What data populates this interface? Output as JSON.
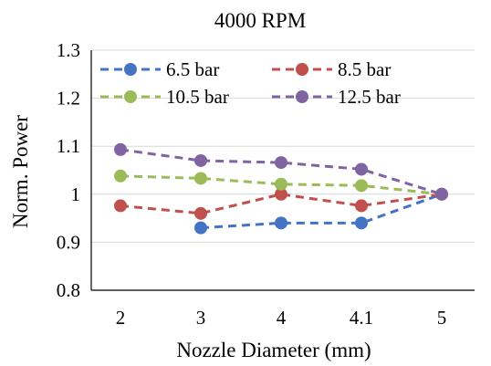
{
  "chart_data": {
    "type": "line",
    "title": "4000 RPM",
    "xlabel": "Nozzle Diameter (mm)",
    "ylabel": "Norm. Power",
    "categories": [
      "2",
      "3",
      "4",
      "4.1",
      "5"
    ],
    "ylim": [
      0.8,
      1.3
    ],
    "yticks": [
      "0.8",
      "0.9",
      "1",
      "1.1",
      "1.2",
      "1.3"
    ],
    "ytick_values": [
      0.8,
      0.9,
      1.0,
      1.1,
      1.2,
      1.3
    ],
    "grid": true,
    "legend_position": "top-left, inside plot, 2 columns",
    "series": [
      {
        "name": "6.5 bar",
        "color": "#4472C4",
        "values": [
          null,
          0.93,
          0.94,
          0.94,
          1.0
        ]
      },
      {
        "name": "8.5 bar",
        "color": "#C0504D",
        "values": [
          0.976,
          0.96,
          1.0,
          0.976,
          1.0
        ]
      },
      {
        "name": "10.5 bar",
        "color": "#9BBB59",
        "values": [
          1.038,
          1.033,
          1.021,
          1.018,
          1.0
        ]
      },
      {
        "name": "12.5 bar",
        "color": "#8064A2",
        "values": [
          1.093,
          1.07,
          1.066,
          1.052,
          1.0
        ]
      }
    ]
  }
}
